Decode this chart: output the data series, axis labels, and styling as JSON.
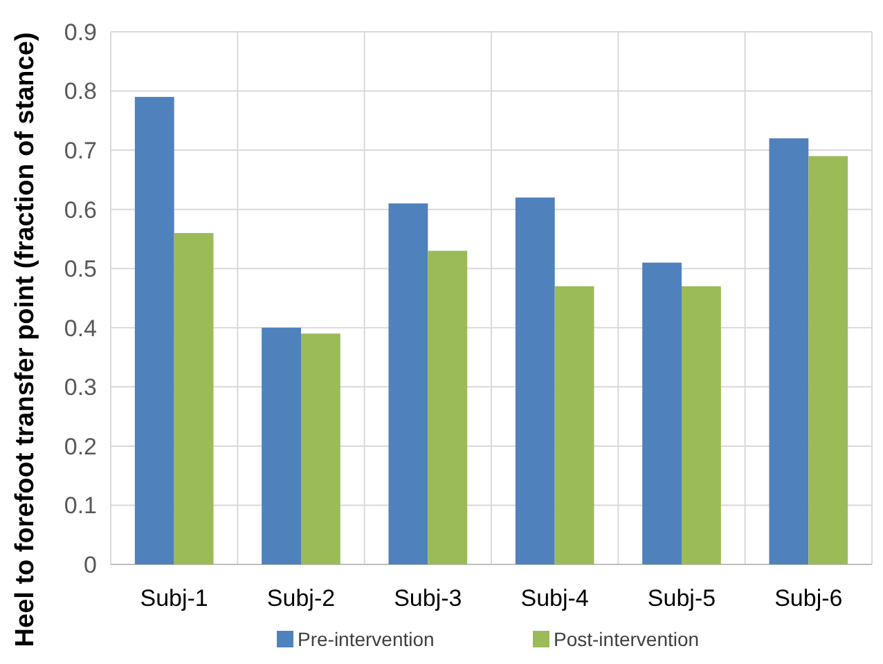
{
  "chart_data": {
    "type": "bar",
    "ylabel": "Heel to forefoot transfer point  (fraction of stance)",
    "categories": [
      "Subj-1",
      "Subj-2",
      "Subj-3",
      "Subj-4",
      "Subj-5",
      "Subj-6"
    ],
    "series": [
      {
        "name": "Pre-intervention",
        "color": "#4f81bd",
        "values": [
          0.79,
          0.4,
          0.61,
          0.62,
          0.51,
          0.72
        ]
      },
      {
        "name": "Post-intervention",
        "color": "#9bbb59",
        "values": [
          0.56,
          0.39,
          0.53,
          0.47,
          0.47,
          0.69
        ]
      }
    ],
    "ylim": [
      0,
      0.9
    ],
    "yticks": [
      0,
      0.1,
      0.2,
      0.3,
      0.4,
      0.5,
      0.6,
      0.7,
      0.8,
      0.9
    ],
    "grid": true,
    "legend": "bottom"
  }
}
